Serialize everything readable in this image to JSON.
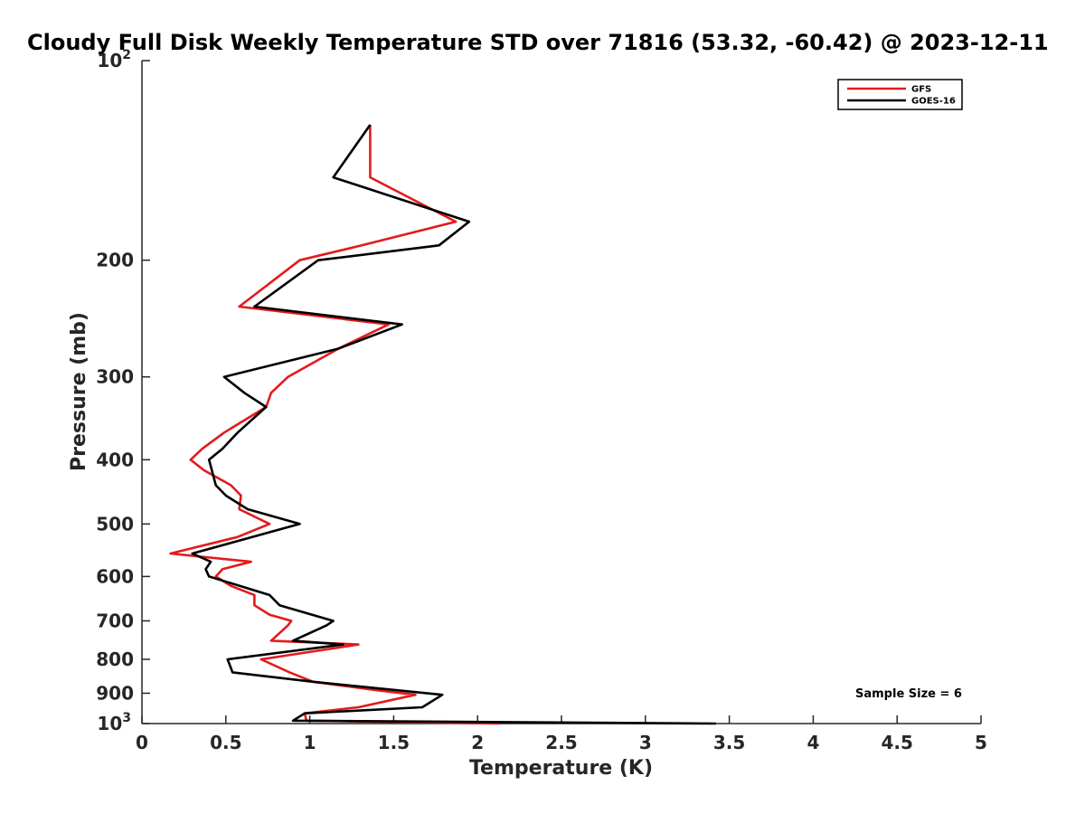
{
  "chart_data": {
    "type": "line",
    "title": "Cloudy Full Disk Weekly Temperature STD over 71816 (53.32, -60.42) @ 2023-12-11",
    "xlabel": "Temperature (K)",
    "ylabel": "Pressure (mb)",
    "xlim": [
      0,
      5
    ],
    "ylim": [
      100,
      1000
    ],
    "y_scale": "log",
    "y_reversed": true,
    "x_ticks": [
      0,
      0.5,
      1,
      1.5,
      2,
      2.5,
      3,
      3.5,
      4,
      4.5,
      5
    ],
    "x_tick_labels": [
      "0",
      "0.5",
      "1",
      "1.5",
      "2",
      "2.5",
      "3",
      "3.5",
      "4",
      "4.5",
      "5"
    ],
    "y_ticks": [
      {
        "value": 100,
        "base": "10",
        "exp": "2"
      },
      {
        "value": 200,
        "label": "200"
      },
      {
        "value": 300,
        "label": "300"
      },
      {
        "value": 400,
        "label": "400"
      },
      {
        "value": 500,
        "label": "500"
      },
      {
        "value": 600,
        "label": "600"
      },
      {
        "value": 700,
        "label": "700"
      },
      {
        "value": 800,
        "label": "800"
      },
      {
        "value": 900,
        "label": "900"
      },
      {
        "value": 1000,
        "base": "10",
        "exp": "3"
      }
    ],
    "grid": false,
    "legend_position": "top-right",
    "annotation": "Sample Size = 6",
    "series": [
      {
        "name": "GFS",
        "color": "#e41a1c",
        "points": [
          [
            1.36,
            125
          ],
          [
            1.36,
            150
          ],
          [
            1.87,
            175
          ],
          [
            1.31,
            190
          ],
          [
            0.94,
            200
          ],
          [
            0.58,
            235
          ],
          [
            1.47,
            250
          ],
          [
            1.17,
            272
          ],
          [
            0.87,
            300
          ],
          [
            0.77,
            317
          ],
          [
            0.74,
            333
          ],
          [
            0.49,
            364
          ],
          [
            0.36,
            385
          ],
          [
            0.29,
            400
          ],
          [
            0.37,
            415
          ],
          [
            0.53,
            437
          ],
          [
            0.59,
            453
          ],
          [
            0.58,
            475
          ],
          [
            0.76,
            500
          ],
          [
            0.57,
            523
          ],
          [
            0.17,
            554
          ],
          [
            0.65,
            570
          ],
          [
            0.48,
            585
          ],
          [
            0.44,
            600
          ],
          [
            0.53,
            620
          ],
          [
            0.67,
            640
          ],
          [
            0.67,
            663
          ],
          [
            0.76,
            685
          ],
          [
            0.89,
            700
          ],
          [
            0.87,
            711
          ],
          [
            0.77,
            750
          ],
          [
            1.29,
            760
          ],
          [
            0.71,
            800
          ],
          [
            0.88,
            837
          ],
          [
            1.02,
            865
          ],
          [
            1.39,
            890
          ],
          [
            1.63,
            905
          ],
          [
            1.29,
            945
          ],
          [
            0.97,
            965
          ],
          [
            0.98,
            990
          ],
          [
            2.13,
            1000
          ]
        ]
      },
      {
        "name": "GOES-16",
        "color": "#000000",
        "points": [
          [
            1.36,
            125
          ],
          [
            1.14,
            150
          ],
          [
            1.95,
            175
          ],
          [
            1.77,
            190
          ],
          [
            1.05,
            200
          ],
          [
            0.67,
            235
          ],
          [
            1.55,
            250
          ],
          [
            1.17,
            272
          ],
          [
            0.49,
            300
          ],
          [
            0.61,
            317
          ],
          [
            0.74,
            333
          ],
          [
            0.57,
            364
          ],
          [
            0.48,
            385
          ],
          [
            0.4,
            400
          ],
          [
            0.44,
            437
          ],
          [
            0.5,
            453
          ],
          [
            0.63,
            475
          ],
          [
            0.94,
            500
          ],
          [
            0.3,
            554
          ],
          [
            0.41,
            570
          ],
          [
            0.38,
            585
          ],
          [
            0.4,
            600
          ],
          [
            0.76,
            640
          ],
          [
            0.82,
            663
          ],
          [
            1.14,
            700
          ],
          [
            1.1,
            711
          ],
          [
            0.9,
            750
          ],
          [
            1.2,
            760
          ],
          [
            0.51,
            800
          ],
          [
            0.54,
            837
          ],
          [
            1.02,
            865
          ],
          [
            1.79,
            905
          ],
          [
            1.67,
            945
          ],
          [
            0.97,
            965
          ],
          [
            0.9,
            990
          ],
          [
            3.42,
            1000
          ]
        ]
      }
    ]
  }
}
